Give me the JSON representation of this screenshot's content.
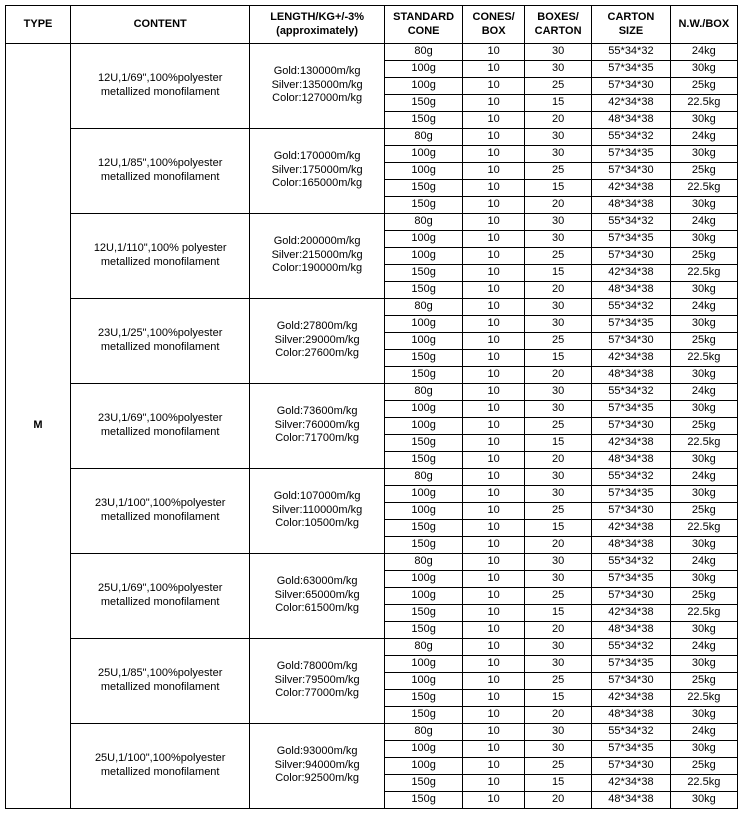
{
  "headers": {
    "type": "TYPE",
    "content": "CONTENT",
    "length": "LENGTH/KG+/-3% (approximately)",
    "std": "STANDARD CONE",
    "cones": "CONES/ BOX",
    "boxes": "BOXES/ CARTON",
    "carton": "CARTON SIZE",
    "nw": "N.W./BOX"
  },
  "typeLabel": "M",
  "groups": [
    {
      "content_l1": "12U,1/69\",100%polyester",
      "content_l2": "metallized monofilament",
      "len_l1": "Gold:130000m/kg",
      "len_l2": "Silver:135000m/kg",
      "len_l3": "Color:127000m/kg",
      "rows": [
        {
          "std": "80g",
          "cones": "10",
          "boxes": "30",
          "carton": "55*34*32",
          "nw": "24kg"
        },
        {
          "std": "100g",
          "cones": "10",
          "boxes": "30",
          "carton": "57*34*35",
          "nw": "30kg"
        },
        {
          "std": "100g",
          "cones": "10",
          "boxes": "25",
          "carton": "57*34*30",
          "nw": "25kg"
        },
        {
          "std": "150g",
          "cones": "10",
          "boxes": "15",
          "carton": "42*34*38",
          "nw": "22.5kg"
        },
        {
          "std": "150g",
          "cones": "10",
          "boxes": "20",
          "carton": "48*34*38",
          "nw": "30kg"
        }
      ]
    },
    {
      "content_l1": "12U,1/85\",100%polyester",
      "content_l2": "metallized monofilament",
      "len_l1": "Gold:170000m/kg",
      "len_l2": "Silver:175000m/kg",
      "len_l3": "Color:165000m/kg",
      "rows": [
        {
          "std": "80g",
          "cones": "10",
          "boxes": "30",
          "carton": "55*34*32",
          "nw": "24kg"
        },
        {
          "std": "100g",
          "cones": "10",
          "boxes": "30",
          "carton": "57*34*35",
          "nw": "30kg"
        },
        {
          "std": "100g",
          "cones": "10",
          "boxes": "25",
          "carton": "57*34*30",
          "nw": "25kg"
        },
        {
          "std": "150g",
          "cones": "10",
          "boxes": "15",
          "carton": "42*34*38",
          "nw": "22.5kg"
        },
        {
          "std": "150g",
          "cones": "10",
          "boxes": "20",
          "carton": "48*34*38",
          "nw": "30kg"
        }
      ]
    },
    {
      "content_l1": "12U,1/110\",100% polyester",
      "content_l2": "metallized monofilament",
      "len_l1": "Gold:200000m/kg",
      "len_l2": "Silver:215000m/kg",
      "len_l3": "Color:190000m/kg",
      "rows": [
        {
          "std": "80g",
          "cones": "10",
          "boxes": "30",
          "carton": "55*34*32",
          "nw": "24kg"
        },
        {
          "std": "100g",
          "cones": "10",
          "boxes": "30",
          "carton": "57*34*35",
          "nw": "30kg"
        },
        {
          "std": "100g",
          "cones": "10",
          "boxes": "25",
          "carton": "57*34*30",
          "nw": "25kg"
        },
        {
          "std": "150g",
          "cones": "10",
          "boxes": "15",
          "carton": "42*34*38",
          "nw": "22.5kg"
        },
        {
          "std": "150g",
          "cones": "10",
          "boxes": "20",
          "carton": "48*34*38",
          "nw": "30kg"
        }
      ]
    },
    {
      "content_l1": "23U,1/25\",100%polyester",
      "content_l2": "metallized monofilament",
      "len_l1": "Gold:27800m/kg",
      "len_l2": "Silver:29000m/kg",
      "len_l3": "Color:27600m/kg",
      "rows": [
        {
          "std": "80g",
          "cones": "10",
          "boxes": "30",
          "carton": "55*34*32",
          "nw": "24kg"
        },
        {
          "std": "100g",
          "cones": "10",
          "boxes": "30",
          "carton": "57*34*35",
          "nw": "30kg"
        },
        {
          "std": "100g",
          "cones": "10",
          "boxes": "25",
          "carton": "57*34*30",
          "nw": "25kg"
        },
        {
          "std": "150g",
          "cones": "10",
          "boxes": "15",
          "carton": "42*34*38",
          "nw": "22.5kg"
        },
        {
          "std": "150g",
          "cones": "10",
          "boxes": "20",
          "carton": "48*34*38",
          "nw": "30kg"
        }
      ]
    },
    {
      "content_l1": "23U,1/69\",100%polyester",
      "content_l2": "metallized monofilament",
      "len_l1": "Gold:73600m/kg",
      "len_l2": "Silver:76000m/kg",
      "len_l3": "Color:71700m/kg",
      "rows": [
        {
          "std": "80g",
          "cones": "10",
          "boxes": "30",
          "carton": "55*34*32",
          "nw": "24kg"
        },
        {
          "std": "100g",
          "cones": "10",
          "boxes": "30",
          "carton": "57*34*35",
          "nw": "30kg"
        },
        {
          "std": "100g",
          "cones": "10",
          "boxes": "25",
          "carton": "57*34*30",
          "nw": "25kg"
        },
        {
          "std": "150g",
          "cones": "10",
          "boxes": "15",
          "carton": "42*34*38",
          "nw": "22.5kg"
        },
        {
          "std": "150g",
          "cones": "10",
          "boxes": "20",
          "carton": "48*34*38",
          "nw": "30kg"
        }
      ]
    },
    {
      "content_l1": "23U,1/100\",100%polyester",
      "content_l2": "metallized monofilament",
      "len_l1": "Gold:107000m/kg",
      "len_l2": "Silver:110000m/kg",
      "len_l3": "Color:10500m/kg",
      "rows": [
        {
          "std": "80g",
          "cones": "10",
          "boxes": "30",
          "carton": "55*34*32",
          "nw": "24kg"
        },
        {
          "std": "100g",
          "cones": "10",
          "boxes": "30",
          "carton": "57*34*35",
          "nw": "30kg"
        },
        {
          "std": "100g",
          "cones": "10",
          "boxes": "25",
          "carton": "57*34*30",
          "nw": "25kg"
        },
        {
          "std": "150g",
          "cones": "10",
          "boxes": "15",
          "carton": "42*34*38",
          "nw": "22.5kg"
        },
        {
          "std": "150g",
          "cones": "10",
          "boxes": "20",
          "carton": "48*34*38",
          "nw": "30kg"
        }
      ]
    },
    {
      "content_l1": "25U,1/69\",100%polyester",
      "content_l2": "metallized monofilament",
      "len_l1": "Gold:63000m/kg",
      "len_l2": "Silver:65000m/kg",
      "len_l3": "Color:61500m/kg",
      "rows": [
        {
          "std": "80g",
          "cones": "10",
          "boxes": "30",
          "carton": "55*34*32",
          "nw": "24kg"
        },
        {
          "std": "100g",
          "cones": "10",
          "boxes": "30",
          "carton": "57*34*35",
          "nw": "30kg"
        },
        {
          "std": "100g",
          "cones": "10",
          "boxes": "25",
          "carton": "57*34*30",
          "nw": "25kg"
        },
        {
          "std": "150g",
          "cones": "10",
          "boxes": "15",
          "carton": "42*34*38",
          "nw": "22.5kg"
        },
        {
          "std": "150g",
          "cones": "10",
          "boxes": "20",
          "carton": "48*34*38",
          "nw": "30kg"
        }
      ]
    },
    {
      "content_l1": "25U,1/85\",100%polyester",
      "content_l2": "metallized monofilament",
      "len_l1": "Gold:78000m/kg",
      "len_l2": "Silver:79500m/kg",
      "len_l3": "Color:77000m/kg",
      "rows": [
        {
          "std": "80g",
          "cones": "10",
          "boxes": "30",
          "carton": "55*34*32",
          "nw": "24kg"
        },
        {
          "std": "100g",
          "cones": "10",
          "boxes": "30",
          "carton": "57*34*35",
          "nw": "30kg"
        },
        {
          "std": "100g",
          "cones": "10",
          "boxes": "25",
          "carton": "57*34*30",
          "nw": "25kg"
        },
        {
          "std": "150g",
          "cones": "10",
          "boxes": "15",
          "carton": "42*34*38",
          "nw": "22.5kg"
        },
        {
          "std": "150g",
          "cones": "10",
          "boxes": "20",
          "carton": "48*34*38",
          "nw": "30kg"
        }
      ]
    },
    {
      "content_l1": "25U,1/100\",100%polyester",
      "content_l2": "metallized monofilament",
      "len_l1": "Gold:93000m/kg",
      "len_l2": "Silver:94000m/kg",
      "len_l3": "Color:92500m/kg",
      "rows": [
        {
          "std": "80g",
          "cones": "10",
          "boxes": "30",
          "carton": "55*34*32",
          "nw": "24kg"
        },
        {
          "std": "100g",
          "cones": "10",
          "boxes": "30",
          "carton": "57*34*35",
          "nw": "30kg"
        },
        {
          "std": "100g",
          "cones": "10",
          "boxes": "25",
          "carton": "57*34*30",
          "nw": "25kg"
        },
        {
          "std": "150g",
          "cones": "10",
          "boxes": "15",
          "carton": "42*34*38",
          "nw": "22.5kg"
        },
        {
          "std": "150g",
          "cones": "10",
          "boxes": "20",
          "carton": "48*34*38",
          "nw": "30kg"
        }
      ]
    }
  ]
}
